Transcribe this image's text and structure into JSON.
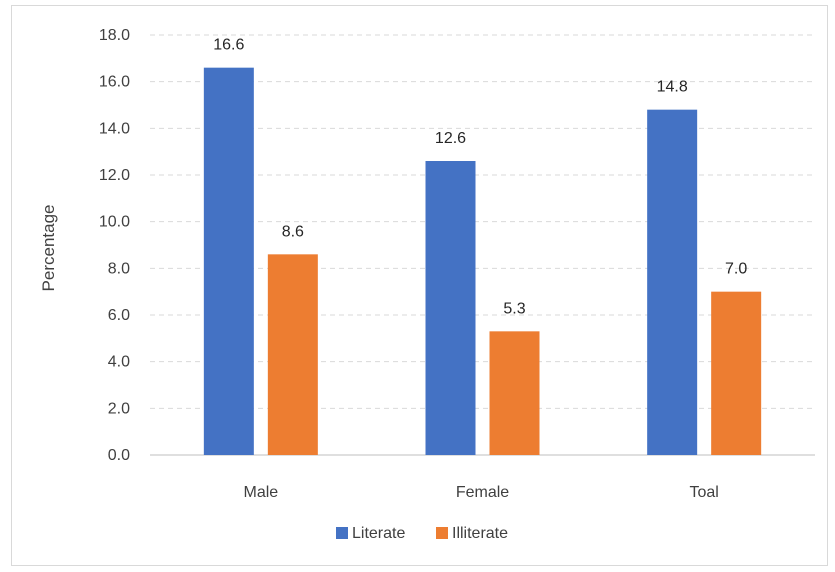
{
  "chart_data": {
    "type": "bar",
    "categories": [
      "Male",
      "Female",
      "Toal"
    ],
    "series": [
      {
        "name": "Literate",
        "values": [
          16.6,
          12.6,
          14.8
        ],
        "color": "#4472C4"
      },
      {
        "name": "Illiterate",
        "values": [
          8.6,
          5.3,
          7.0
        ],
        "color": "#ED7D31"
      }
    ],
    "data_labels": [
      [
        "16.6",
        "12.6",
        "14.8"
      ],
      [
        "8.6",
        "5.3",
        "7.0"
      ]
    ],
    "title": "",
    "xlabel": "",
    "ylabel": "Percentage",
    "ylim": [
      0,
      18
    ],
    "yticks": [
      "0.0",
      "2.0",
      "4.0",
      "6.0",
      "8.0",
      "10.0",
      "12.0",
      "14.0",
      "16.0",
      "18.0"
    ],
    "grid": true,
    "legend_position": "bottom"
  }
}
